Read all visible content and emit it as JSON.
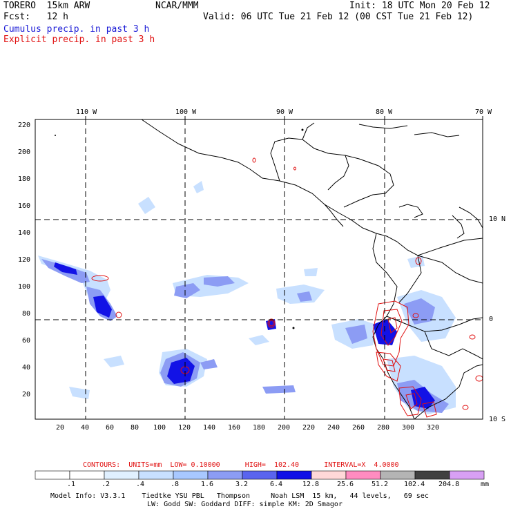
{
  "header": {
    "model_line": "TORERO  15km ARW",
    "org": "NCAR/MMM",
    "init": "Init: 18 UTC Mon 20 Feb 12",
    "fcst": "Fcst:   12 h",
    "valid": "Valid: 06 UTC Tue 21 Feb 12 (00 CST Tue 21 Feb 12)",
    "cumulus": "Cumulus precip. in past 3 h",
    "explicit": "Explicit precip. in past 3 h"
  },
  "map": {
    "lon_labels": [
      "110 W",
      "100 W",
      "90 W",
      "80 W",
      "70 W"
    ],
    "lat_labels": [
      "10 N",
      "0",
      "10 S"
    ],
    "x_ticks": [
      "20",
      "40",
      "60",
      "80",
      "100",
      "120",
      "140",
      "160",
      "180",
      "200",
      "220",
      "240",
      "260",
      "280",
      "300",
      "320"
    ],
    "y_ticks": [
      "220",
      "200",
      "180",
      "160",
      "140",
      "120",
      "100",
      "80",
      "60",
      "40",
      "20"
    ]
  },
  "contours": {
    "label": "CONTOURS:  UNITS=mm  LOW= 0.10000      HIGH=  102.40      INTERVAL=X  4.0000"
  },
  "colorbar": {
    "labels": [
      ".1",
      ".2",
      ".4",
      ".8",
      "1.6",
      "3.2",
      "6.4",
      "12.8",
      "25.6",
      "51.2",
      "102.4",
      "204.8"
    ],
    "unit": "mm",
    "colors": [
      "#ffffff",
      "#ffffff",
      "#e0f0ff",
      "#c8e0ff",
      "#a8c8ff",
      "#8c9cf4",
      "#5a64ee",
      "#1212e6",
      "#ffd8d8",
      "#ff8cc0",
      "#b4b4b4",
      "#404040",
      "#d8a0f4"
    ]
  },
  "footer": {
    "line1": "Model Info: V3.3.1    Tiedtke YSU PBL   Thompson     Noah LSM  15 km,   44 levels,   69 sec",
    "line2": "LW: Godd SW: Goddard DIFF: simple KM: 2D Smagor"
  }
}
